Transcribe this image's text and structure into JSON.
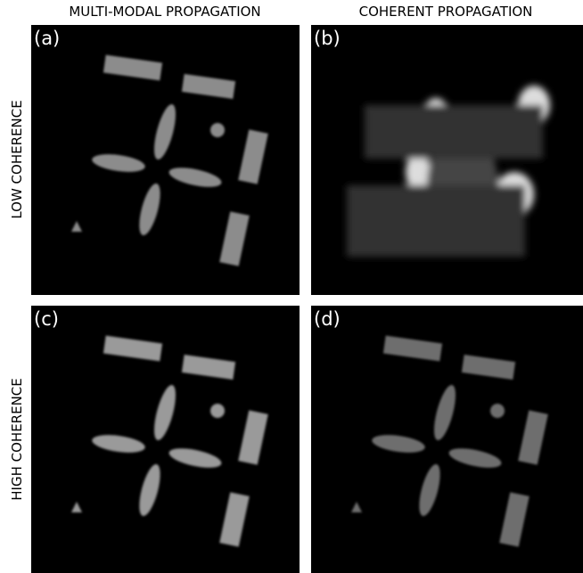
{
  "column_titles": [
    "MULTI-MODAL PROPAGATION",
    "COHERENT PROPAGATION"
  ],
  "row_titles": [
    "LOW COHERENCE",
    "HIGH COHERENCE"
  ],
  "panels": [
    {
      "label": "(a)"
    },
    {
      "label": "(b)"
    },
    {
      "label": "(c)"
    },
    {
      "label": "(d)"
    }
  ]
}
